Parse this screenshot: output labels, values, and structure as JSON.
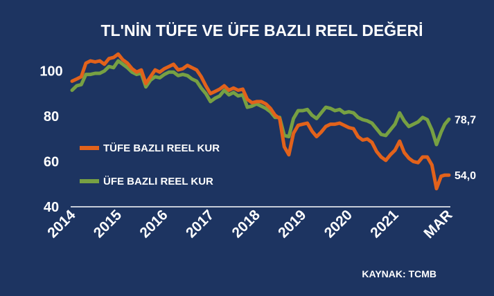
{
  "chart_data": {
    "type": "line",
    "title": "TL'NİN TÜFE VE ÜFE BAZLI REEL DEĞERİ",
    "source": "KAYNAK:  TCMB",
    "ylim": [
      40,
      110
    ],
    "yticks": [
      40,
      60,
      80,
      100
    ],
    "grid": false,
    "legend_placement": "center-left",
    "xtick_labels": [
      {
        "label": "2014",
        "x": 2014.0
      },
      {
        "label": "2015",
        "x": 2015.0
      },
      {
        "label": "2016",
        "x": 2016.0
      },
      {
        "label": "2017",
        "x": 2017.0
      },
      {
        "label": "2018",
        "x": 2018.0
      },
      {
        "label": "2019",
        "x": 2019.0
      },
      {
        "label": "2020",
        "x": 2020.0
      },
      {
        "label": "2021",
        "x": 2021.0
      },
      {
        "label": "MAR",
        "x": 2022.17
      }
    ],
    "series": [
      {
        "name": "TÜFE BAZLI REEL KUR",
        "color": "#e2621b",
        "end_label": "54,0",
        "points": [
          [
            2014.0,
            95.5
          ],
          [
            2014.1,
            96.5
          ],
          [
            2014.2,
            97.5
          ],
          [
            2014.3,
            103.5
          ],
          [
            2014.4,
            104.5
          ],
          [
            2014.5,
            104.0
          ],
          [
            2014.6,
            104.5
          ],
          [
            2014.7,
            103.0
          ],
          [
            2014.8,
            105.5
          ],
          [
            2014.9,
            106.0
          ],
          [
            2015.0,
            107.5
          ],
          [
            2015.1,
            105.0
          ],
          [
            2015.2,
            103.5
          ],
          [
            2015.3,
            101.0
          ],
          [
            2015.4,
            99.5
          ],
          [
            2015.5,
            100.5
          ],
          [
            2015.6,
            94.5
          ],
          [
            2015.7,
            97.5
          ],
          [
            2015.8,
            100.5
          ],
          [
            2015.9,
            99.5
          ],
          [
            2016.0,
            101.0
          ],
          [
            2016.1,
            102.0
          ],
          [
            2016.2,
            103.0
          ],
          [
            2016.3,
            100.5
          ],
          [
            2016.4,
            101.0
          ],
          [
            2016.5,
            102.5
          ],
          [
            2016.6,
            101.5
          ],
          [
            2016.7,
            100.5
          ],
          [
            2016.8,
            97.5
          ],
          [
            2016.9,
            93.5
          ],
          [
            2017.0,
            90.0
          ],
          [
            2017.1,
            91.0
          ],
          [
            2017.2,
            92.0
          ],
          [
            2017.3,
            93.5
          ],
          [
            2017.4,
            91.5
          ],
          [
            2017.5,
            92.5
          ],
          [
            2017.6,
            91.5
          ],
          [
            2017.7,
            92.0
          ],
          [
            2017.8,
            87.5
          ],
          [
            2017.9,
            86.0
          ],
          [
            2018.0,
            86.5
          ],
          [
            2018.1,
            86.5
          ],
          [
            2018.2,
            85.5
          ],
          [
            2018.3,
            83.5
          ],
          [
            2018.4,
            80.5
          ],
          [
            2018.5,
            79.0
          ],
          [
            2018.6,
            66.5
          ],
          [
            2018.7,
            63.0
          ],
          [
            2018.8,
            72.5
          ],
          [
            2018.9,
            76.0
          ],
          [
            2019.0,
            76.5
          ],
          [
            2019.1,
            77.0
          ],
          [
            2019.2,
            73.5
          ],
          [
            2019.3,
            71.0
          ],
          [
            2019.4,
            73.0
          ],
          [
            2019.5,
            75.5
          ],
          [
            2019.6,
            76.5
          ],
          [
            2019.7,
            76.5
          ],
          [
            2019.8,
            77.0
          ],
          [
            2019.9,
            76.0
          ],
          [
            2020.0,
            75.0
          ],
          [
            2020.1,
            74.5
          ],
          [
            2020.2,
            71.0
          ],
          [
            2020.3,
            69.5
          ],
          [
            2020.4,
            70.0
          ],
          [
            2020.5,
            68.5
          ],
          [
            2020.6,
            64.5
          ],
          [
            2020.7,
            62.0
          ],
          [
            2020.8,
            60.5
          ],
          [
            2020.9,
            63.0
          ],
          [
            2021.0,
            65.0
          ],
          [
            2021.1,
            69.0
          ],
          [
            2021.2,
            64.0
          ],
          [
            2021.3,
            61.5
          ],
          [
            2021.4,
            60.0
          ],
          [
            2021.5,
            59.5
          ],
          [
            2021.6,
            62.0
          ],
          [
            2021.7,
            62.0
          ],
          [
            2021.8,
            58.5
          ],
          [
            2021.9,
            48.0
          ],
          [
            2022.0,
            53.5
          ],
          [
            2022.08,
            54.0
          ],
          [
            2022.17,
            54.0
          ]
        ]
      },
      {
        "name": "ÜFE BAZLI REEL KUR",
        "color": "#77a043",
        "end_label": "78,7",
        "points": [
          [
            2014.0,
            91.5
          ],
          [
            2014.1,
            93.5
          ],
          [
            2014.2,
            94.0
          ],
          [
            2014.3,
            98.5
          ],
          [
            2014.4,
            98.5
          ],
          [
            2014.5,
            99.0
          ],
          [
            2014.6,
            99.0
          ],
          [
            2014.7,
            100.0
          ],
          [
            2014.8,
            102.0
          ],
          [
            2014.9,
            101.5
          ],
          [
            2015.0,
            104.5
          ],
          [
            2015.1,
            103.0
          ],
          [
            2015.2,
            101.5
          ],
          [
            2015.3,
            99.5
          ],
          [
            2015.4,
            98.5
          ],
          [
            2015.5,
            99.0
          ],
          [
            2015.6,
            93.0
          ],
          [
            2015.7,
            96.0
          ],
          [
            2015.8,
            97.5
          ],
          [
            2015.9,
            97.0
          ],
          [
            2016.0,
            98.5
          ],
          [
            2016.1,
            99.5
          ],
          [
            2016.2,
            99.5
          ],
          [
            2016.3,
            98.0
          ],
          [
            2016.4,
            98.5
          ],
          [
            2016.5,
            98.0
          ],
          [
            2016.6,
            96.5
          ],
          [
            2016.7,
            95.5
          ],
          [
            2016.8,
            92.5
          ],
          [
            2016.9,
            90.0
          ],
          [
            2017.0,
            86.5
          ],
          [
            2017.1,
            88.0
          ],
          [
            2017.2,
            89.0
          ],
          [
            2017.3,
            91.5
          ],
          [
            2017.4,
            89.5
          ],
          [
            2017.5,
            90.5
          ],
          [
            2017.6,
            89.0
          ],
          [
            2017.7,
            89.5
          ],
          [
            2017.8,
            84.0
          ],
          [
            2017.9,
            84.5
          ],
          [
            2018.0,
            85.5
          ],
          [
            2018.1,
            84.5
          ],
          [
            2018.2,
            83.5
          ],
          [
            2018.3,
            82.0
          ],
          [
            2018.4,
            79.5
          ],
          [
            2018.5,
            79.5
          ],
          [
            2018.6,
            71.5
          ],
          [
            2018.7,
            71.0
          ],
          [
            2018.8,
            79.0
          ],
          [
            2018.9,
            82.5
          ],
          [
            2019.0,
            82.5
          ],
          [
            2019.1,
            83.0
          ],
          [
            2019.2,
            80.5
          ],
          [
            2019.3,
            79.0
          ],
          [
            2019.4,
            81.5
          ],
          [
            2019.5,
            84.0
          ],
          [
            2019.6,
            83.5
          ],
          [
            2019.7,
            82.5
          ],
          [
            2019.8,
            83.0
          ],
          [
            2019.9,
            81.5
          ],
          [
            2020.0,
            82.0
          ],
          [
            2020.1,
            81.5
          ],
          [
            2020.2,
            79.5
          ],
          [
            2020.3,
            78.5
          ],
          [
            2020.4,
            78.0
          ],
          [
            2020.5,
            77.0
          ],
          [
            2020.6,
            74.5
          ],
          [
            2020.7,
            72.0
          ],
          [
            2020.8,
            71.5
          ],
          [
            2020.9,
            74.0
          ],
          [
            2021.0,
            76.5
          ],
          [
            2021.1,
            81.5
          ],
          [
            2021.2,
            78.0
          ],
          [
            2021.3,
            75.5
          ],
          [
            2021.4,
            76.5
          ],
          [
            2021.5,
            77.5
          ],
          [
            2021.6,
            79.5
          ],
          [
            2021.7,
            78.5
          ],
          [
            2021.8,
            74.0
          ],
          [
            2021.9,
            67.5
          ],
          [
            2022.0,
            73.0
          ],
          [
            2022.08,
            76.5
          ],
          [
            2022.17,
            78.7
          ]
        ]
      }
    ]
  }
}
